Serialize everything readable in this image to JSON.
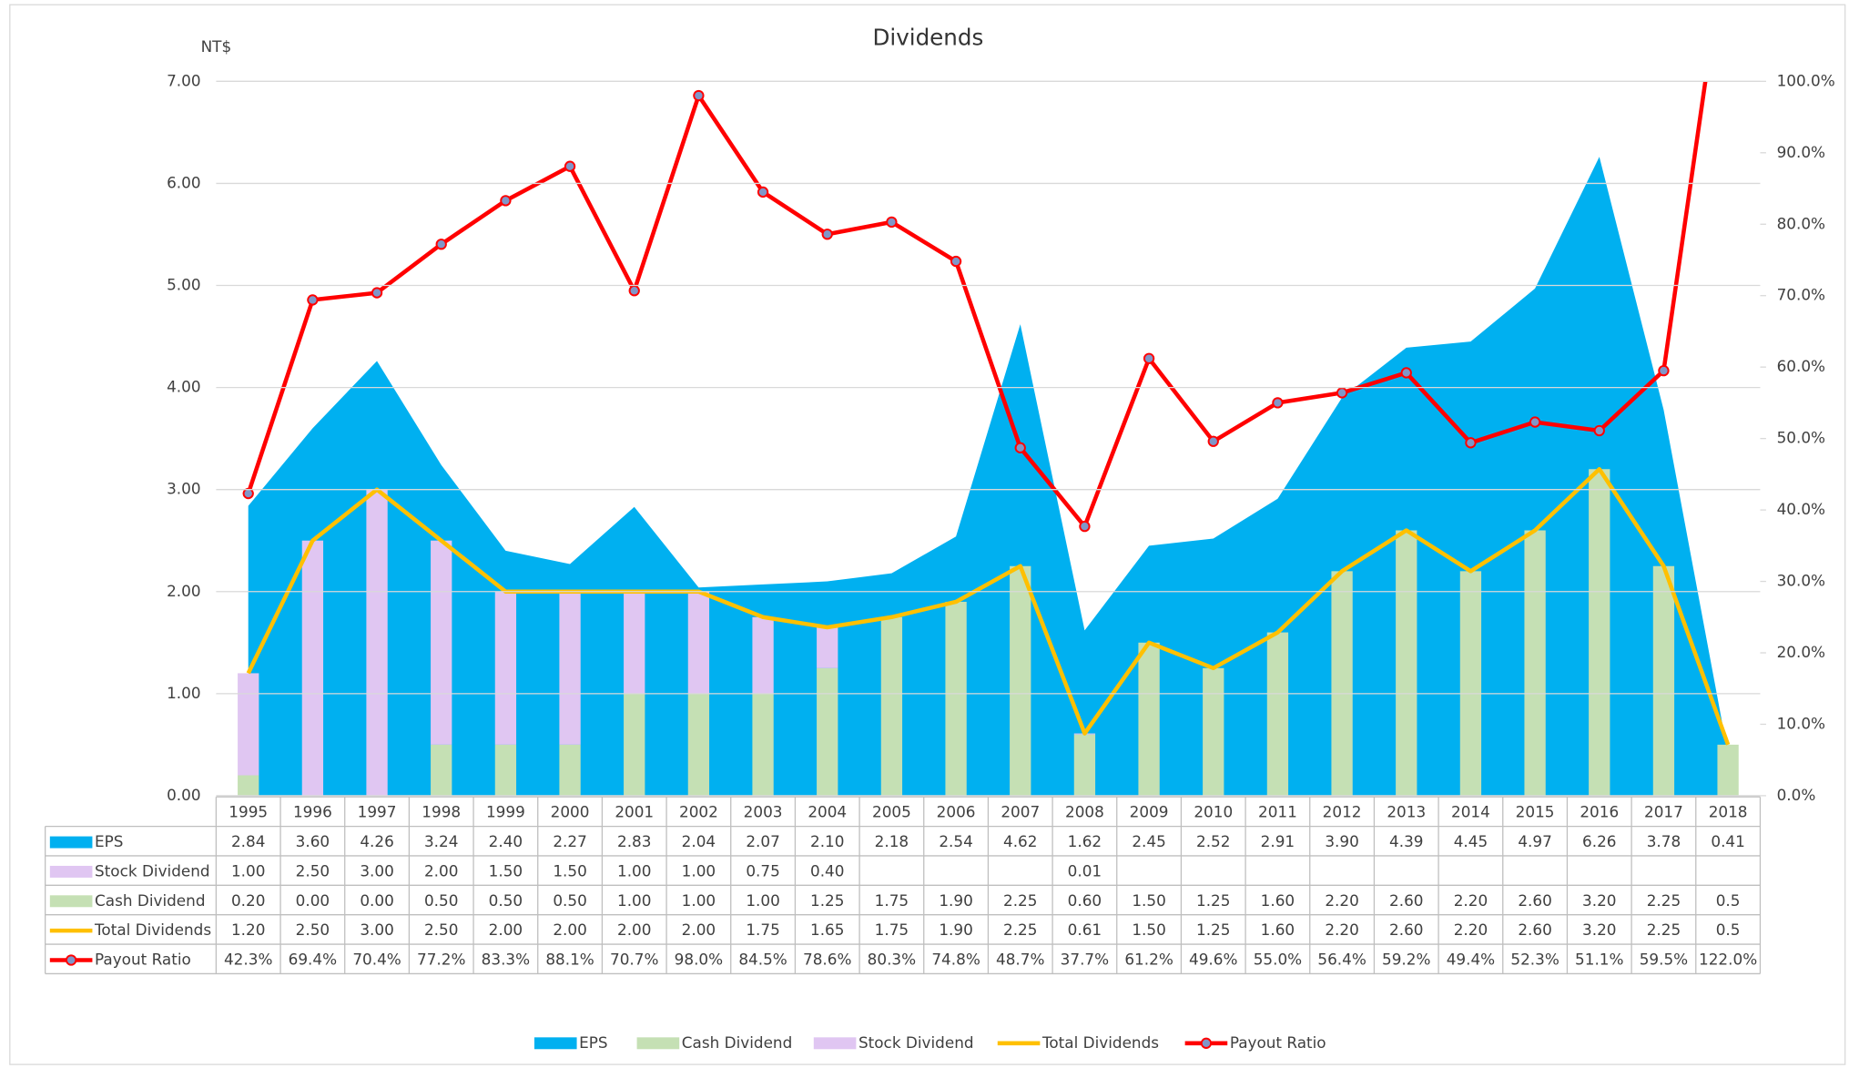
{
  "chart_data": {
    "type": "combo",
    "title": "Dividends",
    "y_label": "NT$",
    "categories": [
      "1995",
      "1996",
      "1997",
      "1998",
      "1999",
      "2000",
      "2001",
      "2002",
      "2003",
      "2004",
      "2005",
      "2006",
      "2007",
      "2008",
      "2009",
      "2010",
      "2011",
      "2012",
      "2013",
      "2014",
      "2015",
      "2016",
      "2017",
      "2018"
    ],
    "series": [
      {
        "name": "EPS",
        "kind": "area",
        "color": "#00b0f0",
        "values": [
          2.84,
          3.6,
          4.26,
          3.24,
          2.4,
          2.27,
          2.83,
          2.04,
          2.07,
          2.1,
          2.18,
          2.54,
          4.62,
          1.62,
          2.45,
          2.52,
          2.91,
          3.9,
          4.39,
          4.45,
          4.97,
          6.26,
          3.78,
          0.41
        ],
        "value_labels": [
          "2.84",
          "3.60",
          "4.26",
          "3.24",
          "2.40",
          "2.27",
          "2.83",
          "2.04",
          "2.07",
          "2.10",
          "2.18",
          "2.54",
          "4.62",
          "1.62",
          "2.45",
          "2.52",
          "2.91",
          "3.90",
          "4.39",
          "4.45",
          "4.97",
          "6.26",
          "3.78",
          "0.41"
        ]
      },
      {
        "name": "Stock Dividend",
        "kind": "stacked_bar",
        "color": "#e0c6f2",
        "values": [
          1.0,
          2.5,
          3.0,
          2.0,
          1.5,
          1.5,
          1.0,
          1.0,
          0.75,
          0.4,
          null,
          null,
          null,
          0.01,
          null,
          null,
          null,
          null,
          null,
          null,
          null,
          null,
          null,
          null
        ],
        "value_labels": [
          "1.00",
          "2.50",
          "3.00",
          "2.00",
          "1.50",
          "1.50",
          "1.00",
          "1.00",
          "0.75",
          "0.40",
          null,
          null,
          null,
          "0.01",
          null,
          null,
          null,
          null,
          null,
          null,
          null,
          null,
          null,
          null
        ]
      },
      {
        "name": "Cash Dividend",
        "kind": "bar",
        "color": "#c5e0b4",
        "values": [
          0.2,
          0.0,
          0.0,
          0.5,
          0.5,
          0.5,
          1.0,
          1.0,
          1.0,
          1.25,
          1.75,
          1.9,
          2.25,
          0.6,
          1.5,
          1.25,
          1.6,
          2.2,
          2.6,
          2.2,
          2.6,
          3.2,
          2.25,
          0.5
        ],
        "value_labels": [
          "0.20",
          "0.00",
          "0.00",
          "0.50",
          "0.50",
          "0.50",
          "1.00",
          "1.00",
          "1.00",
          "1.25",
          "1.75",
          "1.90",
          "2.25",
          "0.60",
          "1.50",
          "1.25",
          "1.60",
          "2.20",
          "2.60",
          "2.20",
          "2.60",
          "3.20",
          "2.25",
          "0.5"
        ]
      },
      {
        "name": "Total Dividends",
        "kind": "line",
        "color": "#ffc000",
        "values": [
          1.2,
          2.5,
          3.0,
          2.5,
          2.0,
          2.0,
          2.0,
          2.0,
          1.75,
          1.65,
          1.75,
          1.9,
          2.25,
          0.61,
          1.5,
          1.25,
          1.6,
          2.2,
          2.6,
          2.2,
          2.6,
          3.2,
          2.25,
          0.5
        ],
        "value_labels": [
          "1.20",
          "2.50",
          "3.00",
          "2.50",
          "2.00",
          "2.00",
          "2.00",
          "2.00",
          "1.75",
          "1.65",
          "1.75",
          "1.90",
          "2.25",
          "0.61",
          "1.50",
          "1.25",
          "1.60",
          "2.20",
          "2.60",
          "2.20",
          "2.60",
          "3.20",
          "2.25",
          "0.5"
        ]
      },
      {
        "name": "Payout Ratio",
        "kind": "line_marker",
        "axis": "y2",
        "color": "#ff0000",
        "marker_color": "#8096c8",
        "values": [
          42.3,
          69.4,
          70.4,
          77.2,
          83.3,
          88.1,
          70.7,
          98.0,
          84.5,
          78.6,
          80.3,
          74.8,
          48.7,
          37.7,
          61.2,
          49.6,
          55.0,
          56.4,
          59.2,
          49.4,
          52.3,
          51.1,
          59.5,
          122.0
        ],
        "value_labels": [
          "42.3%",
          "69.4%",
          "70.4%",
          "77.2%",
          "83.3%",
          "88.1%",
          "70.7%",
          "98.0%",
          "84.5%",
          "78.6%",
          "80.3%",
          "74.8%",
          "48.7%",
          "37.7%",
          "61.2%",
          "49.6%",
          "55.0%",
          "56.4%",
          "59.2%",
          "49.4%",
          "52.3%",
          "51.1%",
          "59.5%",
          "122.0%"
        ]
      }
    ],
    "legend_order": [
      0,
      2,
      1,
      3,
      4
    ],
    "ylim": [
      0,
      7
    ],
    "yticks": [
      {
        "value": 0,
        "label": "0.00"
      },
      {
        "value": 1,
        "label": "1.00"
      },
      {
        "value": 2,
        "label": "2.00"
      },
      {
        "value": 3,
        "label": "3.00"
      },
      {
        "value": 4,
        "label": "4.00"
      },
      {
        "value": 5,
        "label": "5.00"
      },
      {
        "value": 6,
        "label": "6.00"
      },
      {
        "value": 7,
        "label": "7.00"
      }
    ],
    "y2lim": [
      0,
      100
    ],
    "y2ticks": [
      {
        "value": 0,
        "label": "0.0%"
      },
      {
        "value": 10,
        "label": "10.0%"
      },
      {
        "value": 20,
        "label": "20.0%"
      },
      {
        "value": 30,
        "label": "30.0%"
      },
      {
        "value": 40,
        "label": "40.0%"
      },
      {
        "value": 50,
        "label": "50.0%"
      },
      {
        "value": 60,
        "label": "60.0%"
      },
      {
        "value": 70,
        "label": "70.0%"
      },
      {
        "value": 80,
        "label": "80.0%"
      },
      {
        "value": 90,
        "label": "90.0%"
      },
      {
        "value": 100,
        "label": "100.0%"
      }
    ],
    "grid": true,
    "legend": "bottom"
  }
}
